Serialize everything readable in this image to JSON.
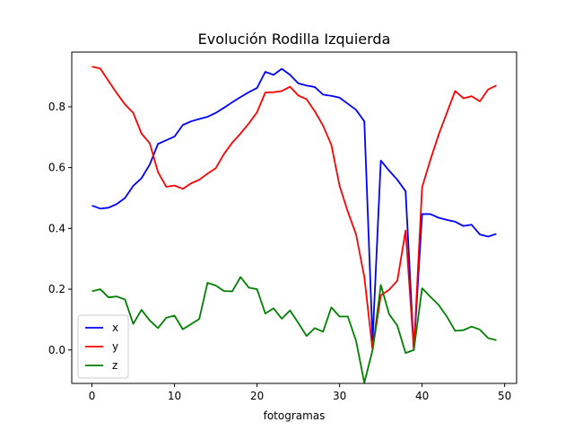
{
  "chart_data": {
    "type": "line",
    "title": "Evolución Rodilla Izquierda",
    "xlabel": "fotogramas",
    "ylabel": "",
    "xlim": [
      -2.45,
      51.45
    ],
    "ylim": [
      -0.11,
      0.98
    ],
    "xticks": [
      0,
      10,
      20,
      30,
      40,
      50
    ],
    "yticks": [
      0.0,
      0.2,
      0.4,
      0.6,
      0.8
    ],
    "ytick_labels": [
      "0.0",
      "0.2",
      "0.4",
      "0.6",
      "0.8"
    ],
    "xtick_labels": [
      "0",
      "10",
      "20",
      "30",
      "40",
      "50"
    ],
    "grid": false,
    "legend_position": "lower-left",
    "x": [
      0,
      1,
      2,
      3,
      4,
      5,
      6,
      7,
      8,
      9,
      10,
      11,
      12,
      13,
      14,
      15,
      16,
      17,
      18,
      19,
      20,
      21,
      22,
      23,
      24,
      25,
      26,
      27,
      28,
      29,
      30,
      31,
      32,
      33,
      34,
      35,
      36,
      37,
      38,
      39,
      40,
      41,
      42,
      43,
      44,
      45,
      46,
      47,
      48,
      49
    ],
    "series": [
      {
        "name": "x",
        "color": "#0000ff",
        "values": [
          0.475,
          0.465,
          0.468,
          0.48,
          0.5,
          0.54,
          0.565,
          0.61,
          0.678,
          0.69,
          0.702,
          0.74,
          0.752,
          0.76,
          0.767,
          0.78,
          0.797,
          0.815,
          0.832,
          0.848,
          0.862,
          0.915,
          0.905,
          0.925,
          0.905,
          0.877,
          0.87,
          0.865,
          0.84,
          0.836,
          0.83,
          0.81,
          0.79,
          0.752,
          0.03,
          0.623,
          0.59,
          0.56,
          0.522,
          0.0,
          0.447,
          0.447,
          0.435,
          0.428,
          0.422,
          0.408,
          0.412,
          0.38,
          0.373,
          0.382
        ]
      },
      {
        "name": "y",
        "color": "#ff0000",
        "values": [
          0.932,
          0.926,
          0.885,
          0.845,
          0.808,
          0.78,
          0.712,
          0.68,
          0.585,
          0.537,
          0.541,
          0.53,
          0.548,
          0.56,
          0.58,
          0.598,
          0.645,
          0.682,
          0.712,
          0.745,
          0.782,
          0.847,
          0.848,
          0.852,
          0.866,
          0.837,
          0.825,
          0.785,
          0.738,
          0.675,
          0.54,
          0.455,
          0.38,
          0.24,
          0.0,
          0.18,
          0.198,
          0.228,
          0.393,
          0.0,
          0.535,
          0.625,
          0.708,
          0.78,
          0.852,
          0.828,
          0.835,
          0.818,
          0.857,
          0.87
        ]
      },
      {
        "name": "z",
        "color": "#008000",
        "values": [
          0.193,
          0.2,
          0.173,
          0.176,
          0.166,
          0.086,
          0.132,
          0.097,
          0.072,
          0.106,
          0.113,
          0.068,
          0.085,
          0.102,
          0.221,
          0.212,
          0.194,
          0.193,
          0.24,
          0.205,
          0.2,
          0.12,
          0.137,
          0.103,
          0.13,
          0.089,
          0.046,
          0.072,
          0.06,
          0.14,
          0.11,
          0.11,
          0.03,
          -0.108,
          0.0,
          0.214,
          0.118,
          0.08,
          -0.01,
          0.0,
          0.203,
          0.175,
          0.148,
          0.11,
          0.063,
          0.065,
          0.077,
          0.067,
          0.039,
          0.032
        ]
      }
    ]
  }
}
